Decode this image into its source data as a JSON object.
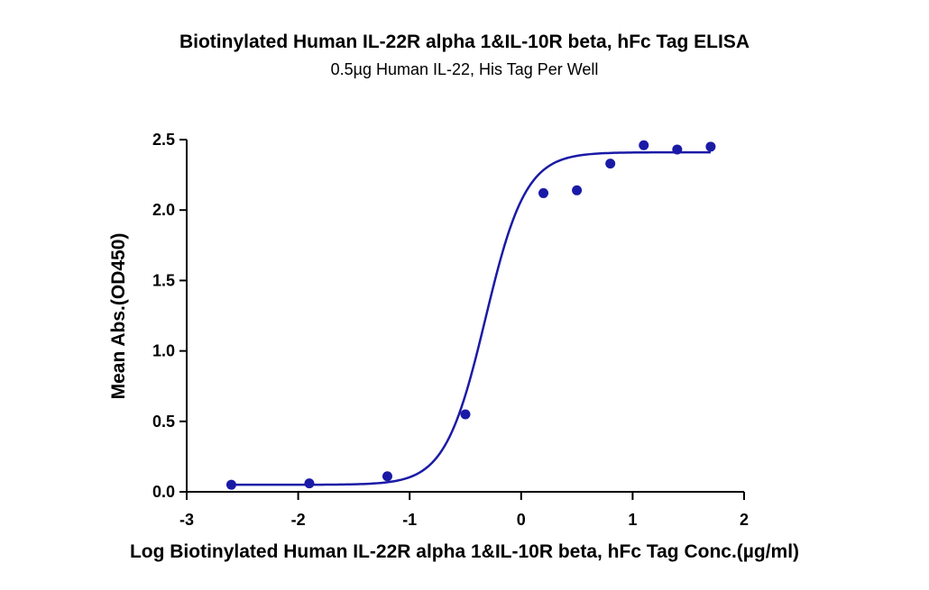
{
  "chart_data": {
    "type": "scatter",
    "title": "Biotinylated Human IL-22R alpha 1&IL-10R beta, hFc Tag ELISA",
    "subtitle": "0.5µg Human IL-22, His Tag Per Well",
    "xlabel": "Log Biotinylated Human IL-22R alpha 1&IL-10R beta, hFc Tag Conc.(µg/ml)",
    "ylabel": "Mean Abs.(OD450)",
    "xlim": [
      -3,
      2
    ],
    "ylim": [
      0,
      2.5
    ],
    "x_ticks": [
      "-3",
      "-2",
      "-1",
      "0",
      "1",
      "2"
    ],
    "y_ticks": [
      "0.0",
      "0.5",
      "1.0",
      "1.5",
      "2.0",
      "2.5"
    ],
    "grid": false,
    "color": "#1a1aa6",
    "series": [
      {
        "points": [
          {
            "x": -2.6,
            "y": 0.05
          },
          {
            "x": -1.9,
            "y": 0.06
          },
          {
            "x": -1.2,
            "y": 0.11
          },
          {
            "x": -0.5,
            "y": 0.55
          },
          {
            "x": 0.2,
            "y": 2.12
          },
          {
            "x": 0.5,
            "y": 2.14
          },
          {
            "x": 0.8,
            "y": 2.33
          },
          {
            "x": 1.1,
            "y": 2.46
          },
          {
            "x": 1.4,
            "y": 2.43
          },
          {
            "x": 1.7,
            "y": 2.45
          }
        ],
        "fit": {
          "model": "4PL",
          "bottom": 0.05,
          "top": 2.41,
          "logEC50": -0.32,
          "hill": 2.4,
          "x_range": [
            -2.6,
            1.7
          ]
        }
      }
    ]
  }
}
